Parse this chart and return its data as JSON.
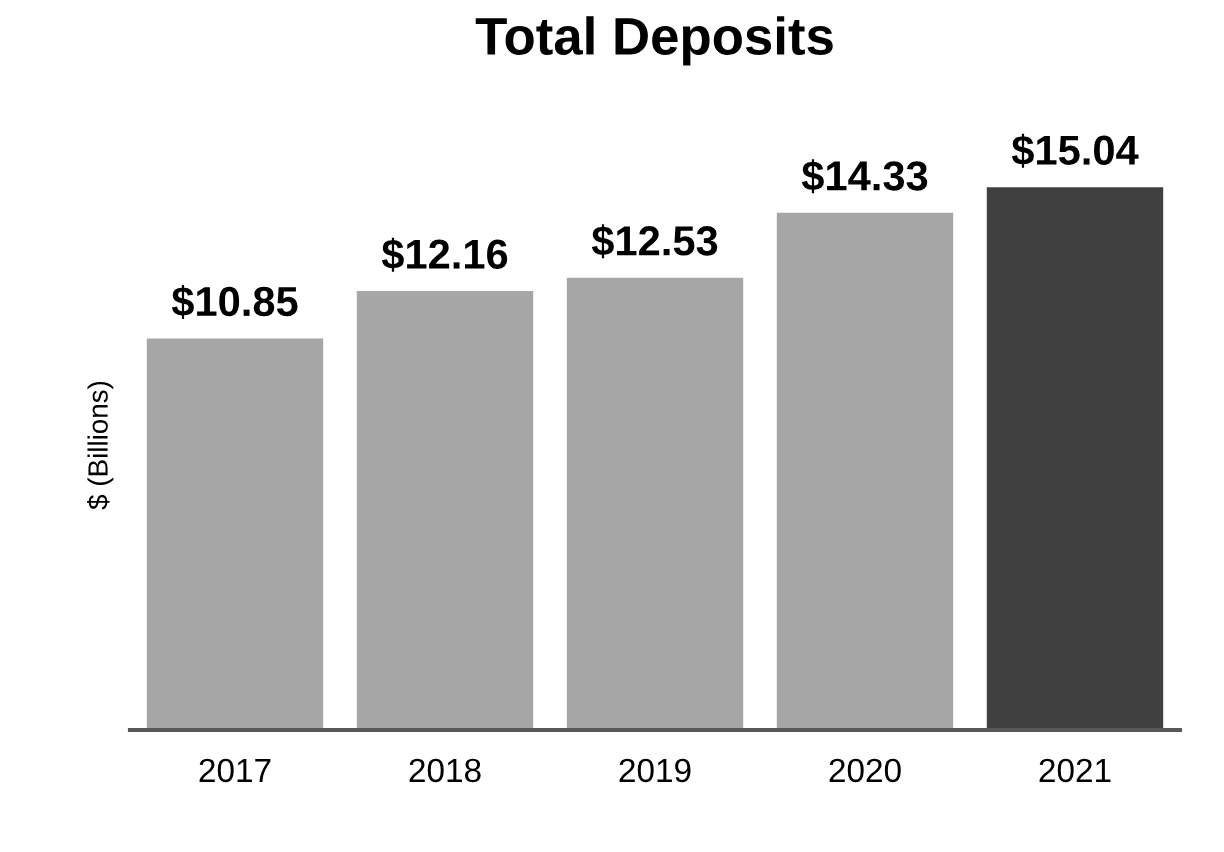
{
  "chart_data": {
    "type": "bar",
    "title": "Total Deposits",
    "ylabel": "$ (Billions)",
    "categories": [
      "2017",
      "2018",
      "2019",
      "2020",
      "2021"
    ],
    "values": [
      10.85,
      12.16,
      12.53,
      14.33,
      15.04
    ],
    "colors": [
      "#a6a6a6",
      "#a6a6a6",
      "#a6a6a6",
      "#a6a6a6",
      "#404040"
    ],
    "value_labels": [
      "$10.85",
      "$12.16",
      "$12.53",
      "$14.33",
      "$15.04"
    ],
    "tick_labels": "x",
    "grid": false,
    "legend": false
  }
}
